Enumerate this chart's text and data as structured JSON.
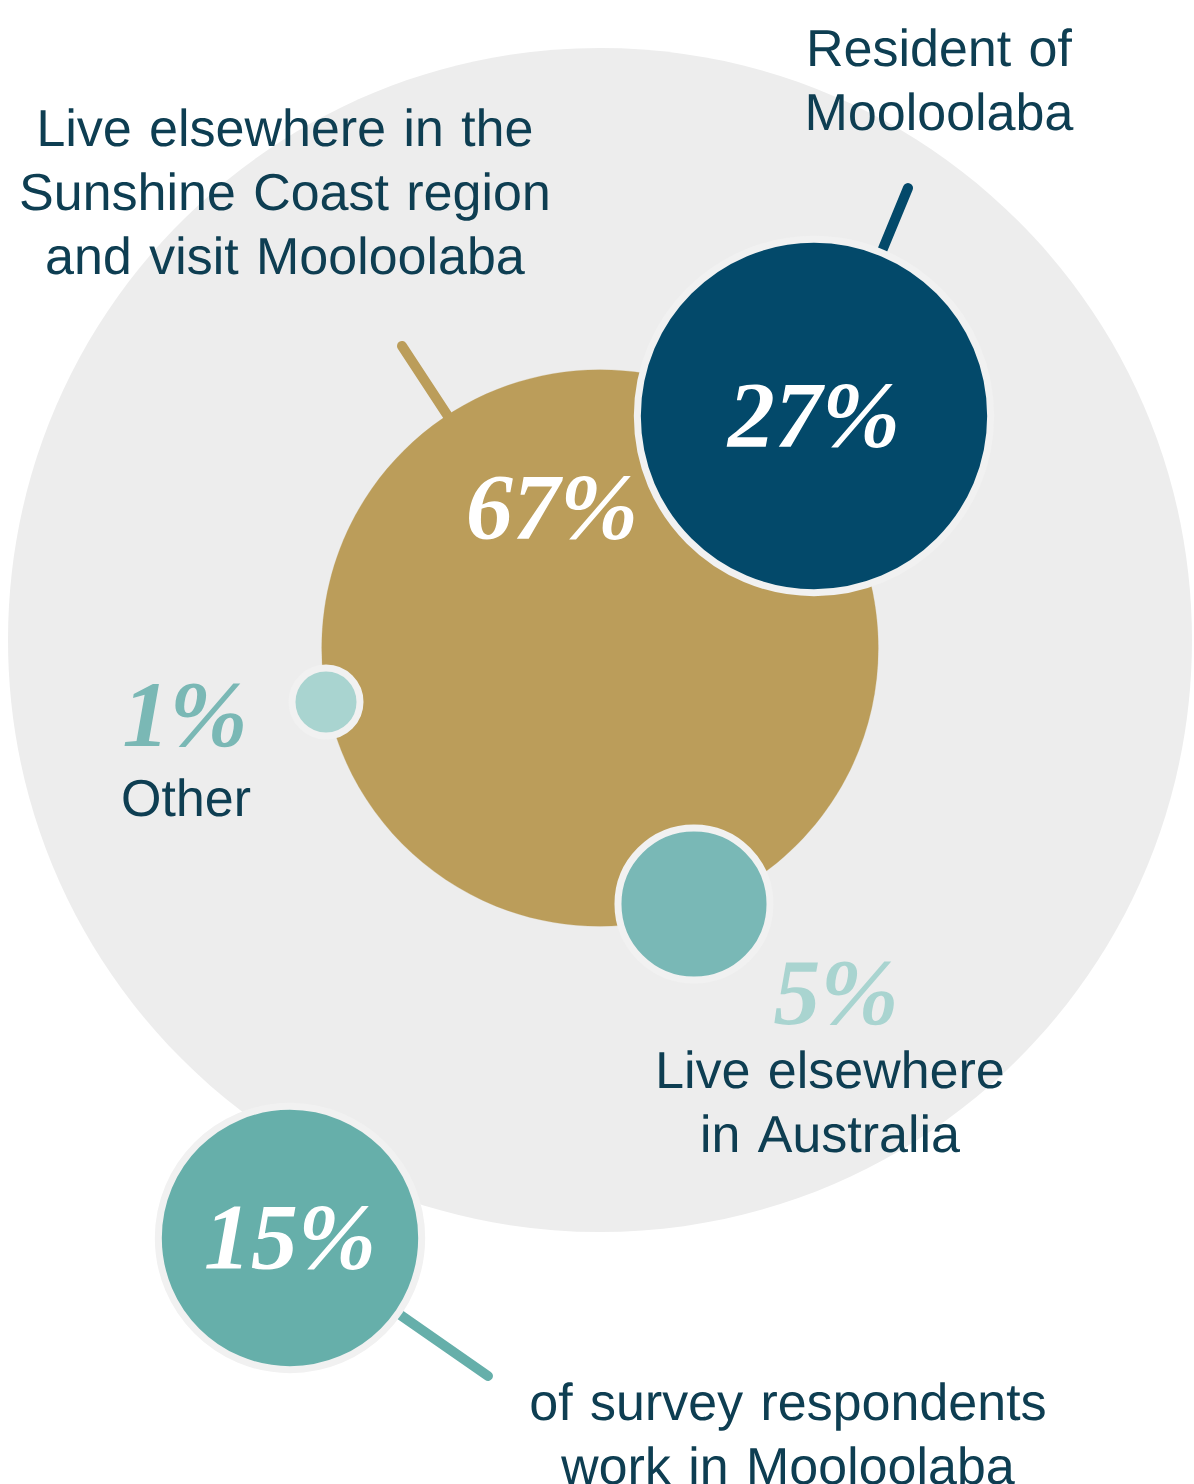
{
  "chart_data": {
    "type": "other",
    "categories": [
      "Resident of Mooloolaba",
      "Live elsewhere in the Sunshine Coast region and visit Mooloolaba",
      "Other",
      "Live elsewhere in Australia",
      "of survey respondents work in Mooloolaba"
    ],
    "values": [
      27,
      67,
      1,
      5,
      15
    ],
    "colors": [
      "#03496a",
      "#bb9d5a",
      "#a9d4d0",
      "#79b8b6",
      "#66afaa"
    ],
    "value_labels": [
      "27%",
      "67%",
      "1%",
      "5%",
      "15%"
    ]
  }
}
